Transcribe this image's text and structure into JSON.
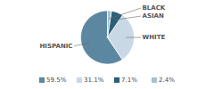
{
  "chart_data": {
    "type": "pie",
    "categories": [
      "HISPANIC",
      "WHITE",
      "ASIAN",
      "BLACK"
    ],
    "values": [
      59.5,
      31.1,
      7.1,
      2.4
    ],
    "value_labels": [
      "59.5%",
      "31.1%",
      "7.1%",
      "2.4%"
    ],
    "colors": [
      "#5b87a0",
      "#c8d9e5",
      "#2d5f7a",
      "#a8c2d0"
    ],
    "legend": "bottom"
  }
}
